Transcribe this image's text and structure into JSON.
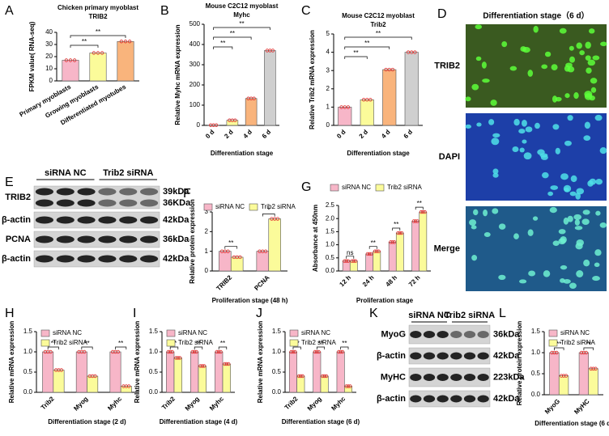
{
  "chart_data": [
    {
      "panel": "A",
      "type": "bar",
      "title": "Chicken primary myoblast",
      "subtitle": "TRIB2",
      "ylabel": "FPKM value( RNA-seq)",
      "categories": [
        "Primary myoblasts",
        "Growing myoblasts",
        "Differentiated myotubes"
      ],
      "values": [
        17,
        23,
        32.5
      ],
      "colors": [
        "#f7b6c8",
        "#fbfb9a",
        "#f9b47c"
      ],
      "ylim": [
        0,
        40
      ],
      "yticks": [
        0,
        10,
        20,
        30,
        40
      ],
      "annotations": [
        "**",
        "**"
      ]
    },
    {
      "panel": "B",
      "type": "bar",
      "title": "Mouse C2C12 myoblast",
      "subtitle": "Myhc",
      "ylabel": "Relative Myhc mRNA expression",
      "xlabel": "Differentiation stage",
      "categories": [
        "0 d",
        "2 d",
        "4 d",
        "6 d"
      ],
      "values": [
        1,
        25,
        133,
        370
      ],
      "colors": [
        "#f7b6c8",
        "#fbfb9a",
        "#f9b47c",
        "#cfcfcf"
      ],
      "ylim": [
        0,
        500
      ],
      "yticks": [
        0,
        100,
        200,
        300,
        400,
        500
      ],
      "annotations": [
        "**",
        "**",
        "**"
      ]
    },
    {
      "panel": "C",
      "type": "bar",
      "title": "Mouse C2C12 myoblast",
      "subtitle": "Trib2",
      "ylabel": "Relative Trib2 mRNA expression",
      "xlabel": "Differentiation stage",
      "categories": [
        "0 d",
        "2 d",
        "4 d",
        "6 d"
      ],
      "values": [
        1,
        1.4,
        3.05,
        4
      ],
      "colors": [
        "#f7b6c8",
        "#fbfb9a",
        "#f9b47c",
        "#cfcfcf"
      ],
      "ylim": [
        0,
        5
      ],
      "yticks": [
        0,
        1,
        2,
        3,
        4,
        5
      ],
      "annotations": [
        "**",
        "**",
        "**"
      ]
    },
    {
      "panel": "F",
      "type": "bar",
      "ylabel": "Relative  protein expression",
      "xlabel": "Proliferation stage (48 h)",
      "categories": [
        "TRIB2",
        "PCNA"
      ],
      "series": [
        {
          "name": "siRNA NC",
          "color": "#f7b6c8",
          "values": [
            1,
            1
          ]
        },
        {
          "name": "Trib2 siRNA",
          "color": "#fbfb9a",
          "values": [
            0.7,
            2.65
          ]
        }
      ],
      "ylim": [
        0,
        3
      ],
      "yticks": [
        0,
        1,
        2,
        3
      ],
      "annotations": [
        "**",
        "*"
      ],
      "legend": "top"
    },
    {
      "panel": "G",
      "type": "bar",
      "ylabel": "Absorbance at 450nm",
      "xlabel": "Proliferation stage",
      "categories": [
        "12 h",
        "24 h",
        "48 h",
        "72 h"
      ],
      "series": [
        {
          "name": "siRNA NC",
          "color": "#f7b6c8",
          "values": [
            0.38,
            0.65,
            1.1,
            1.9
          ]
        },
        {
          "name": "Trib2 siRNA",
          "color": "#fbfb9a",
          "values": [
            0.38,
            0.75,
            1.45,
            2.25
          ]
        }
      ],
      "ylim": [
        0,
        2.5
      ],
      "yticks": [
        {
          "value": 0,
          "label": "0.0"
        },
        0.5,
        {
          "value": 1,
          "label": "1.0"
        },
        1.5,
        {
          "value": 2,
          "label": "2.0"
        },
        2.5
      ],
      "annotations": [
        "ns",
        "**",
        "**",
        "**"
      ],
      "legend": "top"
    },
    {
      "panel": "H",
      "type": "bar",
      "ylabel": "Relative mRNA expression",
      "xlabel": "Differentiation stage (2 d)",
      "categories": [
        "Trib2",
        "Myog",
        "Myhc"
      ],
      "series": [
        {
          "name": "siRNA NC",
          "color": "#f7b6c8",
          "values": [
            1,
            1,
            1
          ]
        },
        {
          "name": "Trib2 siRNA",
          "color": "#fbfb9a",
          "values": [
            0.55,
            0.4,
            0.15
          ]
        }
      ],
      "ylim": [
        0,
        1.5
      ],
      "yticks": [
        {
          "value": 0,
          "label": "0.0"
        },
        0.5,
        {
          "value": 1,
          "label": "1.0"
        },
        1.5
      ],
      "annotations": [
        "**",
        "**",
        "**"
      ],
      "legend": "upper left"
    },
    {
      "panel": "I",
      "type": "bar",
      "ylabel": "Relative mRNA expression",
      "xlabel": "Differentiation stage (4 d)",
      "categories": [
        "Trib2",
        "Myog",
        "Myhc"
      ],
      "series": [
        {
          "name": "siRNA NC",
          "color": "#f7b6c8",
          "values": [
            1,
            1,
            1
          ]
        },
        {
          "name": "Trib2 siRNA",
          "color": "#fbfb9a",
          "values": [
            0.85,
            0.65,
            0.7
          ]
        }
      ],
      "ylim": [
        0,
        1.5
      ],
      "yticks": [
        {
          "value": 0,
          "label": "0.0"
        },
        0.5,
        {
          "value": 1,
          "label": "1.0"
        },
        1.5
      ],
      "annotations": [
        "**",
        "**",
        "**"
      ],
      "legend": "upper left"
    },
    {
      "panel": "J",
      "type": "bar",
      "ylabel": "Relative mRNA expression",
      "xlabel": "Differentiation stage (6 d)",
      "categories": [
        "Trib2",
        "Myog",
        "Myhc"
      ],
      "series": [
        {
          "name": "siRNA NC",
          "color": "#f7b6c8",
          "values": [
            1,
            1,
            1
          ]
        },
        {
          "name": "Trib2 siRNA",
          "color": "#fbfb9a",
          "values": [
            0.4,
            0.4,
            0.15
          ]
        }
      ],
      "ylim": [
        0,
        1.5
      ],
      "yticks": [
        {
          "value": 0,
          "label": "0.0"
        },
        0.5,
        {
          "value": 1,
          "label": "1.0"
        },
        1.5
      ],
      "annotations": [
        "**",
        "**",
        "**"
      ],
      "legend": "upper left"
    },
    {
      "panel": "L",
      "type": "bar",
      "ylabel": "Relative protein expression",
      "xlabel": "Differentiation stage (6 d)",
      "categories": [
        "MyoG",
        "MyHC"
      ],
      "series": [
        {
          "name": "siRNA NC",
          "color": "#f7b6c8",
          "values": [
            1,
            1
          ]
        },
        {
          "name": "Trib2 siRNA",
          "color": "#fbfb9a",
          "values": [
            0.45,
            0.62
          ]
        }
      ],
      "ylim": [
        0,
        1.5
      ],
      "yticks": [
        {
          "value": 0,
          "label": "0.0"
        },
        0.5,
        {
          "value": 1,
          "label": "1.0"
        },
        1.5
      ],
      "annotations": [
        "**",
        "**"
      ],
      "legend": "upper left"
    }
  ],
  "blots": [
    {
      "panel": "E",
      "groups": [
        "siRNA NC",
        "Trib2 siRNA"
      ],
      "rows": [
        {
          "name": "TRIB2",
          "sizes": [
            "39kDa",
            "36KDa"
          ]
        },
        {
          "name": "β-actin",
          "sizes": [
            "42kDa"
          ]
        },
        {
          "name": "PCNA",
          "sizes": [
            "36kDa"
          ]
        },
        {
          "name": "β-actin",
          "sizes": [
            "42kDa"
          ]
        }
      ]
    },
    {
      "panel": "K",
      "groups": [
        "siRNA NC",
        "Trib2 siRNA"
      ],
      "rows": [
        {
          "name": "MyoG",
          "sizes": [
            "36kDa"
          ]
        },
        {
          "name": "β-actin",
          "sizes": [
            "42kDa"
          ]
        },
        {
          "name": "MyHC",
          "sizes": [
            "223kDa"
          ]
        },
        {
          "name": "β-actin",
          "sizes": [
            "42kDa"
          ]
        }
      ]
    }
  ],
  "image": {
    "panel": "D",
    "title": "Differentiation stage（6 d）",
    "channels": [
      "TRIB2",
      "DAPI",
      "Merge"
    ]
  }
}
